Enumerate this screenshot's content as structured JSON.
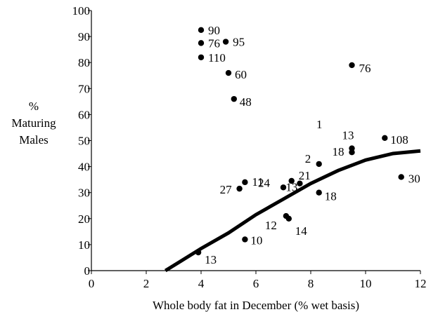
{
  "chart_data": {
    "type": "scatter",
    "title": "",
    "xlabel": "Whole body fat in December (% wet basis)",
    "ylabel_lines": [
      "%",
      "Maturing",
      "Males"
    ],
    "xlim": [
      0,
      12
    ],
    "ylim": [
      0,
      100
    ],
    "x_ticks": [
      0,
      2,
      4,
      6,
      8,
      10,
      12
    ],
    "y_ticks": [
      0,
      10,
      20,
      30,
      40,
      50,
      60,
      70,
      80,
      90,
      100
    ],
    "grid": false,
    "legend": "none",
    "points": [
      {
        "x": 4.0,
        "y": 92.5,
        "label": "90"
      },
      {
        "x": 4.0,
        "y": 87.5,
        "label": "76"
      },
      {
        "x": 4.9,
        "y": 88.0,
        "label": "95"
      },
      {
        "x": 4.0,
        "y": 82.0,
        "label": "110"
      },
      {
        "x": 5.0,
        "y": 76.0,
        "label": "60"
      },
      {
        "x": 5.2,
        "y": 66.0,
        "label": "48"
      },
      {
        "x": 9.5,
        "y": 79.0,
        "label": "76"
      },
      {
        "x": 9.5,
        "y": 47.0,
        "label": "13"
      },
      {
        "x": 9.5,
        "y": 45.5,
        "label": "18"
      },
      {
        "x": 10.7,
        "y": 51.0,
        "label": "108"
      },
      {
        "x": 8.3,
        "y": 41.0,
        "label": "2"
      },
      {
        "x": 11.3,
        "y": 36.0,
        "label": "30"
      },
      {
        "x": 5.6,
        "y": 34.0,
        "label": "11"
      },
      {
        "x": 5.4,
        "y": 31.5,
        "label": "27"
      },
      {
        "x": 7.3,
        "y": 34.5,
        "label": "21"
      },
      {
        "x": 7.0,
        "y": 32.0,
        "label": "24"
      },
      {
        "x": 7.6,
        "y": 33.5,
        "label": "13"
      },
      {
        "x": 8.3,
        "y": 30.0,
        "label": "18"
      },
      {
        "x": 7.1,
        "y": 21.0,
        "label": "12"
      },
      {
        "x": 7.2,
        "y": 20.0,
        "label": "14"
      },
      {
        "x": 5.6,
        "y": 12.0,
        "label": "10"
      },
      {
        "x": 3.9,
        "y": 7.0,
        "label": "13"
      }
    ],
    "free_labels": [
      {
        "text": "1"
      }
    ],
    "trend_curve": {
      "type": "quadratic",
      "x_start": 2.7,
      "x_end": 12.0,
      "points": [
        [
          2.7,
          0
        ],
        [
          4,
          8.5
        ],
        [
          5,
          14.5
        ],
        [
          6,
          21.5
        ],
        [
          7,
          27.5
        ],
        [
          8,
          33.5
        ],
        [
          9,
          38.5
        ],
        [
          10,
          42.5
        ],
        [
          11,
          45
        ],
        [
          12,
          46
        ]
      ]
    }
  }
}
